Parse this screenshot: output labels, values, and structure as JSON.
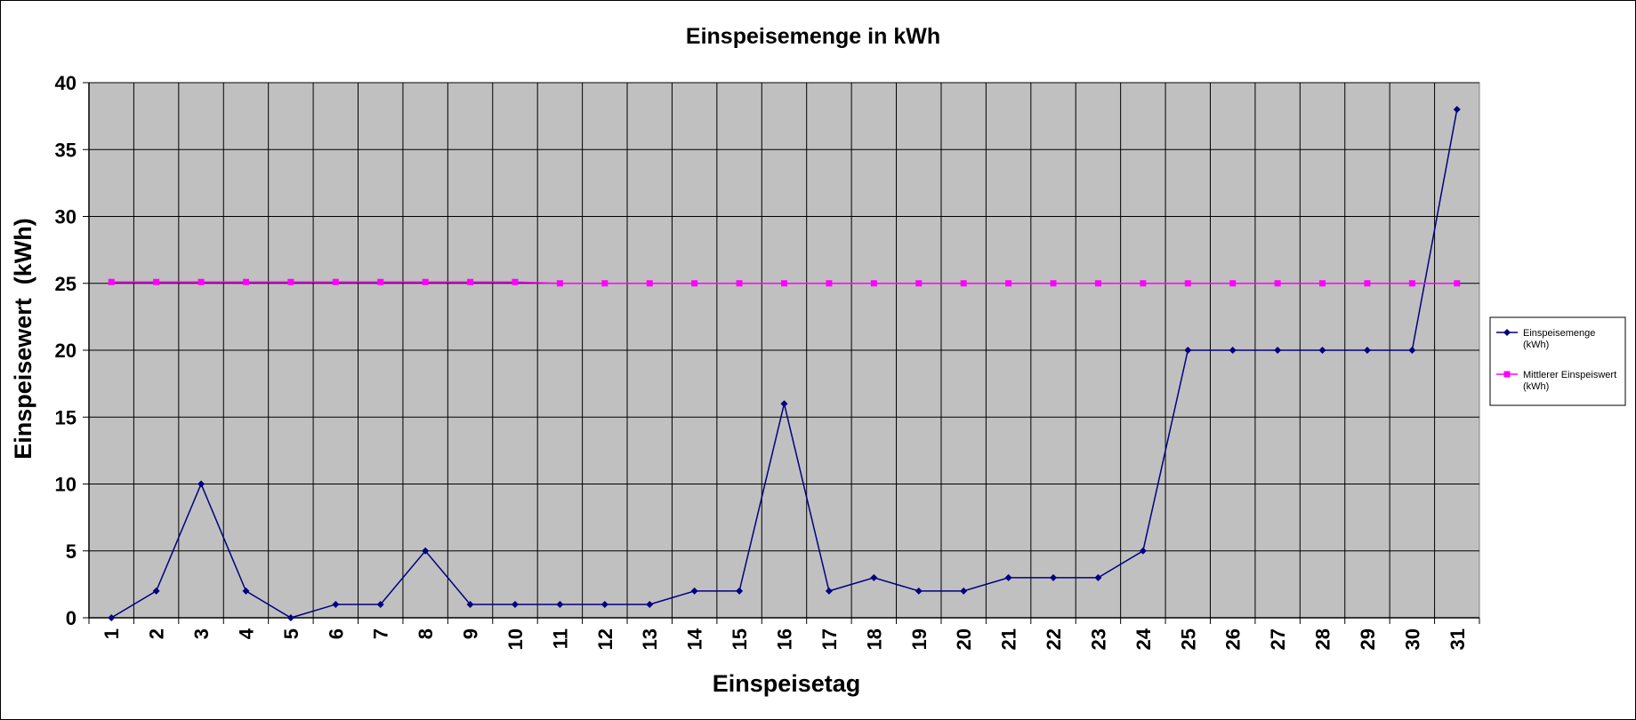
{
  "chart_data": {
    "type": "line",
    "title": "Einspeisemenge in kWh",
    "xlabel": "Einspeisetag",
    "ylabel": "Einspeisewert  (kWh)",
    "categories": [
      "1",
      "2",
      "3",
      "4",
      "5",
      "6",
      "7",
      "8",
      "9",
      "10",
      "11",
      "12",
      "13",
      "14",
      "15",
      "16",
      "17",
      "18",
      "19",
      "20",
      "21",
      "22",
      "23",
      "24",
      "25",
      "26",
      "27",
      "28",
      "29",
      "30",
      "31"
    ],
    "ylim": [
      0,
      40
    ],
    "yticks": [
      0,
      5,
      10,
      15,
      20,
      25,
      30,
      35,
      40
    ],
    "grid": true,
    "legend_position": "right",
    "plot_background": "#c0c0c0",
    "series": [
      {
        "name": "Einspeisemenge (kWh)",
        "legend_lines": [
          "Einspeisemenge",
          "(kWh)"
        ],
        "color": "#000080",
        "marker": "diamond",
        "values": [
          0,
          2,
          10,
          2,
          0,
          1,
          1,
          5,
          1,
          1,
          1,
          1,
          1,
          2,
          2,
          16,
          2,
          3,
          2,
          2,
          3,
          3,
          3,
          5,
          20,
          20,
          20,
          20,
          20,
          20,
          38
        ]
      },
      {
        "name": "Mittlerer Einspeiswert (kWh)",
        "legend_lines": [
          "Mittlerer Einspeiswert",
          "(kWh)"
        ],
        "color": "#ff00ff",
        "marker": "square",
        "values": [
          25.1,
          25.1,
          25.1,
          25.1,
          25.1,
          25.1,
          25.1,
          25.1,
          25.1,
          25.1,
          25,
          25,
          25,
          25,
          25,
          25,
          25,
          25,
          25,
          25,
          25,
          25,
          25,
          25,
          25,
          25,
          25,
          25,
          25,
          25,
          25
        ]
      }
    ]
  }
}
